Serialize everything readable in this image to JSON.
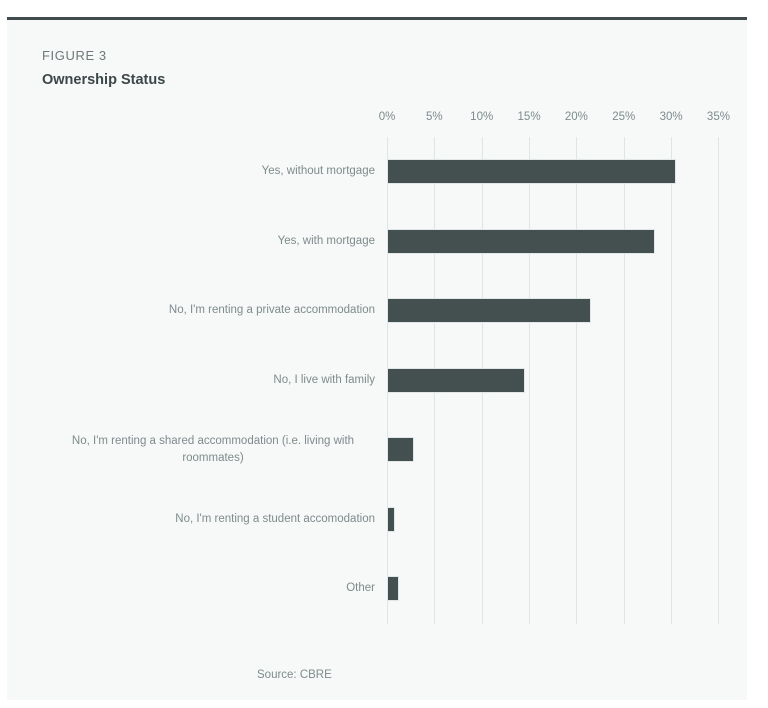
{
  "figure": {
    "label": "FIGURE 3",
    "title": "Ownership Status",
    "source": "Source: CBRE"
  },
  "colors": {
    "accent_line": "#3f4b4d",
    "bar_fill": "#44504f",
    "card_background": "#f7f8f8",
    "gridline": "#dfe4e4",
    "label_text": "#7e8b8c",
    "title_text": "#3c4748",
    "figure_label_text": "#6e797a"
  },
  "chart_data": {
    "type": "bar",
    "orientation": "horizontal",
    "title": "Ownership Status",
    "xlabel": "",
    "ylabel": "",
    "unit": "%",
    "xlim": [
      0,
      35
    ],
    "tick_step": 5,
    "x_ticks": [
      "0%",
      "5%",
      "10%",
      "15%",
      "20%",
      "25%",
      "30%",
      "35%"
    ],
    "grid": true,
    "legend": "none",
    "categories": [
      "Yes, without mortgage",
      "Yes, with mortgage",
      "No, I'm renting a private accommodation",
      "No, I live with family",
      "No, I'm renting a shared accommodation (i.e. living with roommates)",
      "No, I'm renting a student accomodation",
      "Other"
    ],
    "values": [
      30.5,
      28.3,
      21.5,
      14.6,
      2.9,
      0.8,
      1.3
    ],
    "source": "Source: CBRE"
  }
}
